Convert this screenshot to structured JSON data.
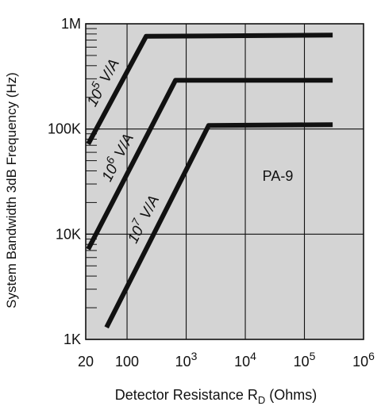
{
  "chart_data": {
    "type": "line",
    "title": "",
    "xlabel_main": "Detector Resistance R",
    "xlabel_sub": "D",
    "xlabel_tail": " (Ohms)",
    "ylabel": "System Bandwidth 3dB Frequency (Hz)",
    "x_scale": "log",
    "y_scale": "log",
    "xlim": [
      20,
      1000000
    ],
    "ylim": [
      1000,
      1000000
    ],
    "x_ticks": [
      {
        "value": 20,
        "base": "20",
        "exp": ""
      },
      {
        "value": 100,
        "base": "100",
        "exp": ""
      },
      {
        "value": 1000,
        "base": "10",
        "exp": "3"
      },
      {
        "value": 10000,
        "base": "10",
        "exp": "4"
      },
      {
        "value": 100000,
        "base": "10",
        "exp": "5"
      },
      {
        "value": 1000000,
        "base": "10",
        "exp": "6"
      }
    ],
    "y_ticks": [
      {
        "value": 1000,
        "label": "1K"
      },
      {
        "value": 10000,
        "label": "10K"
      },
      {
        "value": 100000,
        "label": "100K"
      },
      {
        "value": 1000000,
        "label": "1M"
      }
    ],
    "grid": true,
    "plot_background": "#d4d4d4",
    "line_color": "#111111",
    "annotation": "PA-9",
    "series": [
      {
        "label_base": "10",
        "label_exp": "5",
        "label_unit": "V/A",
        "points": [
          [
            22,
            72000
          ],
          [
            210,
            760000
          ],
          [
            300000,
            780000
          ]
        ]
      },
      {
        "label_base": "10",
        "label_exp": "6",
        "label_unit": "V/A",
        "points": [
          [
            22,
            7200
          ],
          [
            660,
            290000
          ],
          [
            300000,
            290000
          ]
        ]
      },
      {
        "label_base": "10",
        "label_exp": "7",
        "label_unit": "V/A",
        "points": [
          [
            45,
            1300
          ],
          [
            2400,
            108000
          ],
          [
            300000,
            110000
          ]
        ]
      }
    ]
  }
}
